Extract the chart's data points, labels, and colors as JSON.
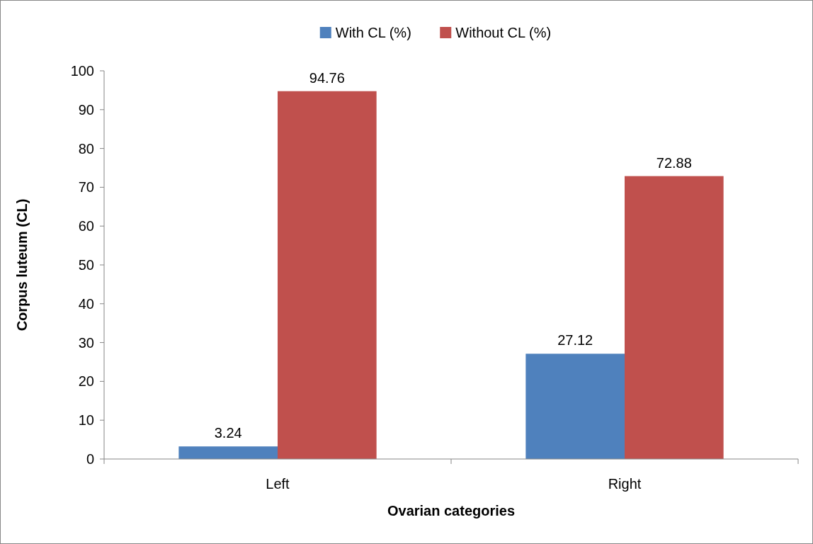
{
  "chart_data": {
    "type": "bar",
    "xlabel": "Ovarian categories",
    "ylabel": "Corpus luteum (CL)",
    "categories": [
      "Left",
      "Right"
    ],
    "series": [
      {
        "name": "With CL (%)",
        "color": "#4f81bd",
        "values": [
          3.24,
          27.12
        ]
      },
      {
        "name": "Without CL (%)",
        "color": "#c0504d",
        "values": [
          94.76,
          72.88
        ]
      }
    ],
    "ylim": [
      0,
      100
    ],
    "yticks": [
      0,
      10,
      20,
      30,
      40,
      50,
      60,
      70,
      80,
      90,
      100
    ],
    "data_labels": true,
    "legend": "top",
    "grid": false
  }
}
